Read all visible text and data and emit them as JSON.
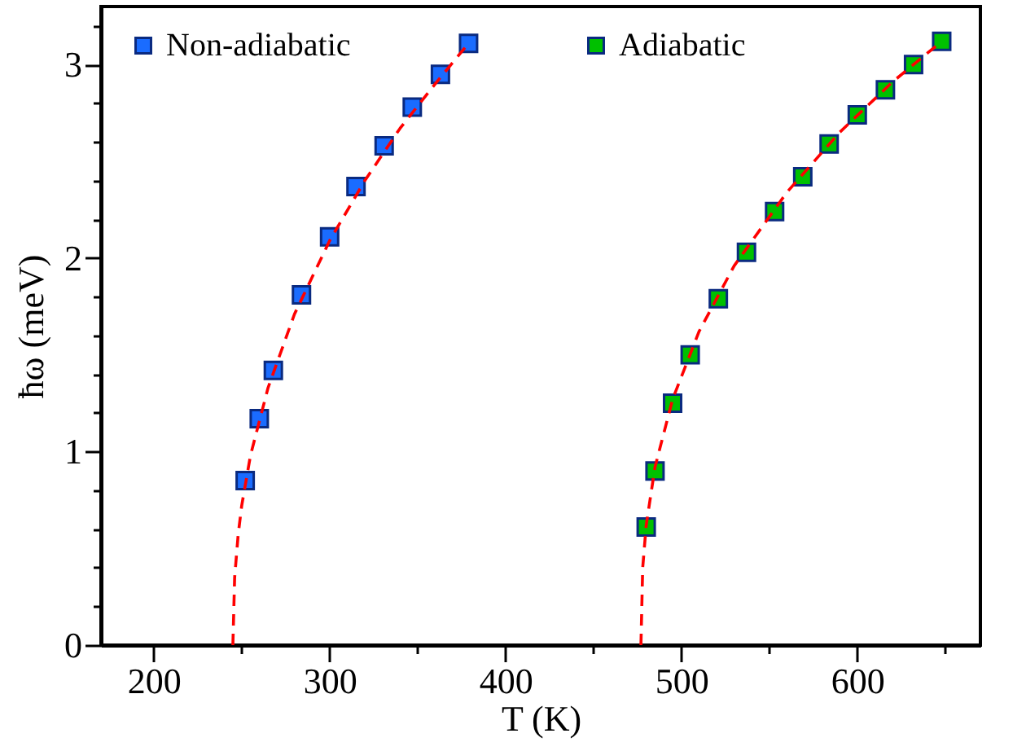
{
  "chart_data": {
    "type": "scatter",
    "xlabel": "T (K)",
    "ylabel": "ħω (meV)",
    "xlim": [
      170,
      670
    ],
    "ylim": [
      0,
      3.3
    ],
    "xticks": [
      200,
      {
        "value": 250,
        "label": null
      },
      300,
      {
        "value": 350,
        "label": null
      },
      400,
      {
        "value": 450,
        "label": null
      },
      500,
      {
        "value": 550,
        "label": null
      },
      600,
      {
        "value": 650,
        "label": null
      }
    ],
    "yticks": [
      0,
      {
        "value": 0.2,
        "label": null
      },
      {
        "value": 0.4,
        "label": null
      },
      {
        "value": 0.6,
        "label": null
      },
      {
        "value": 0.8,
        "label": null
      },
      1,
      {
        "value": 1.2,
        "label": null
      },
      {
        "value": 1.4,
        "label": null
      },
      {
        "value": 1.6,
        "label": null
      },
      {
        "value": 1.8,
        "label": null
      },
      2,
      {
        "value": 2.2,
        "label": null
      },
      {
        "value": 2.4,
        "label": null
      },
      {
        "value": 2.6,
        "label": null
      },
      {
        "value": 2.8,
        "label": null
      },
      3,
      {
        "value": 3.2,
        "label": null
      }
    ],
    "grid": false,
    "legend": "top",
    "marker": "square",
    "series": [
      {
        "name": "Non-adiabatic",
        "color": "#1a6cff",
        "x": [
          252,
          260,
          268,
          284,
          300,
          315,
          331,
          347,
          363,
          379
        ],
        "values": [
          0.85,
          1.17,
          1.42,
          1.81,
          2.11,
          2.37,
          2.58,
          2.78,
          2.95,
          3.11
        ]
      },
      {
        "name": "Adiabatic",
        "color": "#00c000",
        "x": [
          480,
          485,
          495,
          505,
          521,
          537,
          553,
          569,
          584,
          600,
          616,
          632,
          648
        ],
        "values": [
          0.61,
          0.9,
          1.25,
          1.5,
          1.79,
          2.03,
          2.24,
          2.42,
          2.59,
          2.74,
          2.87,
          3.0,
          3.12
        ]
      },
      {
        "type": "line",
        "color": "#ff0000",
        "line_style": "dashed",
        "marker": "none",
        "x": [
          245,
          246,
          248,
          250,
          255,
          265,
          280,
          300,
          320,
          340,
          360,
          379
        ],
        "values": [
          0,
          0.35,
          0.57,
          0.72,
          0.98,
          1.33,
          1.71,
          2.09,
          2.4,
          2.67,
          2.9,
          3.11
        ]
      },
      {
        "type": "line",
        "color": "#ff0000",
        "line_style": "dashed",
        "marker": "none",
        "x": [
          477,
          478,
          480,
          485,
          495,
          510,
          530,
          560,
          590,
          620,
          648
        ],
        "values": [
          0,
          0.4,
          0.62,
          0.92,
          1.27,
          1.62,
          1.96,
          2.34,
          2.65,
          2.91,
          3.12
        ]
      }
    ]
  }
}
